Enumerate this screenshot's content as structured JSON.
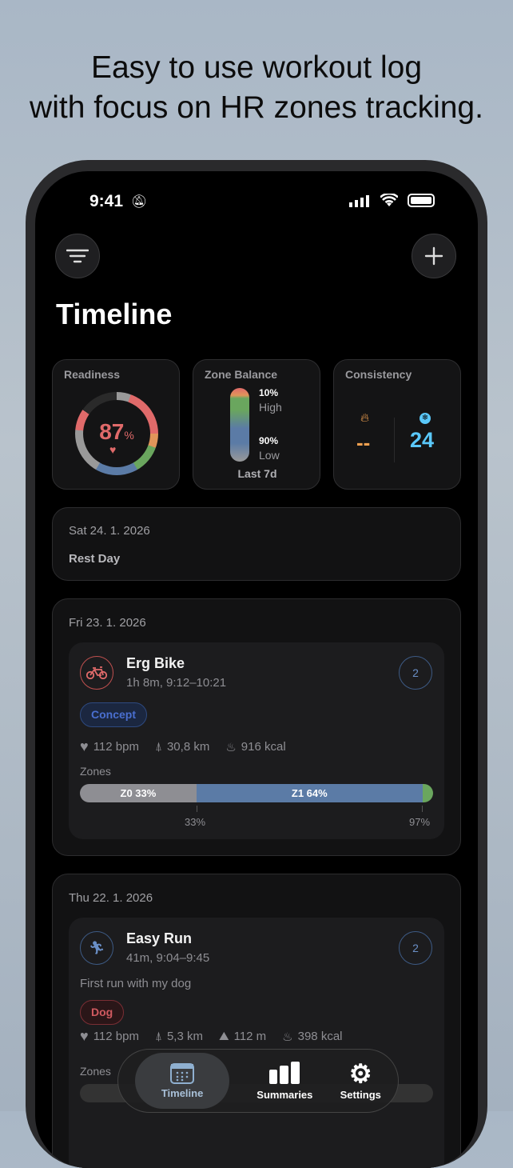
{
  "headline": {
    "line1": "Easy to use workout log",
    "line2": "with focus on HR zones tracking."
  },
  "status": {
    "time": "9:41",
    "icons": [
      "bell-slash-icon",
      "signal-icon",
      "wifi-icon",
      "battery-icon"
    ]
  },
  "header": {
    "title": "Timeline",
    "filter_icon": "filter-icon",
    "add_icon": "plus-icon"
  },
  "widgets": {
    "readiness": {
      "title": "Readiness",
      "value": "87",
      "unit": "%",
      "percent": 87,
      "icon": "heart-bolt-icon",
      "color": "#e06a6a"
    },
    "zone_balance": {
      "title": "Zone Balance",
      "high_pct": "10%",
      "high_label": "High",
      "low_pct": "90%",
      "low_label": "Low",
      "period": "Last 7d"
    },
    "consistency": {
      "title": "Consistency",
      "streak_value": "--",
      "streak_icon": "flame-icon",
      "streak_color": "#f0a050",
      "freeze_value": "24",
      "freeze_icon": "snowflake-icon",
      "freeze_color": "#5ac8fa"
    }
  },
  "days": [
    {
      "date": "Sat 24. 1. 2026",
      "rest": "Rest Day"
    },
    {
      "date": "Fri 23. 1. 2026",
      "workout": {
        "name": "Erg Bike",
        "sub": "1h 8m, 9:12–10:21",
        "icon": "bike-icon",
        "count": "2",
        "tag": "Concept",
        "hr": "112 bpm",
        "distance": "30,8 km",
        "kcal": "916 kcal",
        "zones_label": "Zones",
        "zones": [
          {
            "label": "Z0 33%",
            "pct": 33,
            "color": "#8e8e93"
          },
          {
            "label": "Z1 64%",
            "pct": 64,
            "color": "#5b7ba6"
          },
          {
            "label": "",
            "pct": 3,
            "color": "#6aa65e"
          }
        ],
        "ticks": [
          "33%",
          "97%"
        ]
      }
    },
    {
      "date": "Thu 22. 1. 2026",
      "workout": {
        "name": "Easy Run",
        "sub": "41m, 9:04–9:45",
        "icon": "running-icon",
        "count": "2",
        "note": "First run with my dog",
        "tag": "Dog",
        "hr": "112 bpm",
        "distance": "5,3 km",
        "elevation": "112 m",
        "kcal": "398 kcal",
        "zones_label": "Zones"
      }
    }
  ],
  "tabbar": {
    "items": [
      {
        "label": "Timeline",
        "icon": "calendar-icon",
        "selected": true
      },
      {
        "label": "Summaries",
        "icon": "bar-chart-icon"
      },
      {
        "label": "Settings",
        "icon": "gear-icon"
      }
    ]
  }
}
